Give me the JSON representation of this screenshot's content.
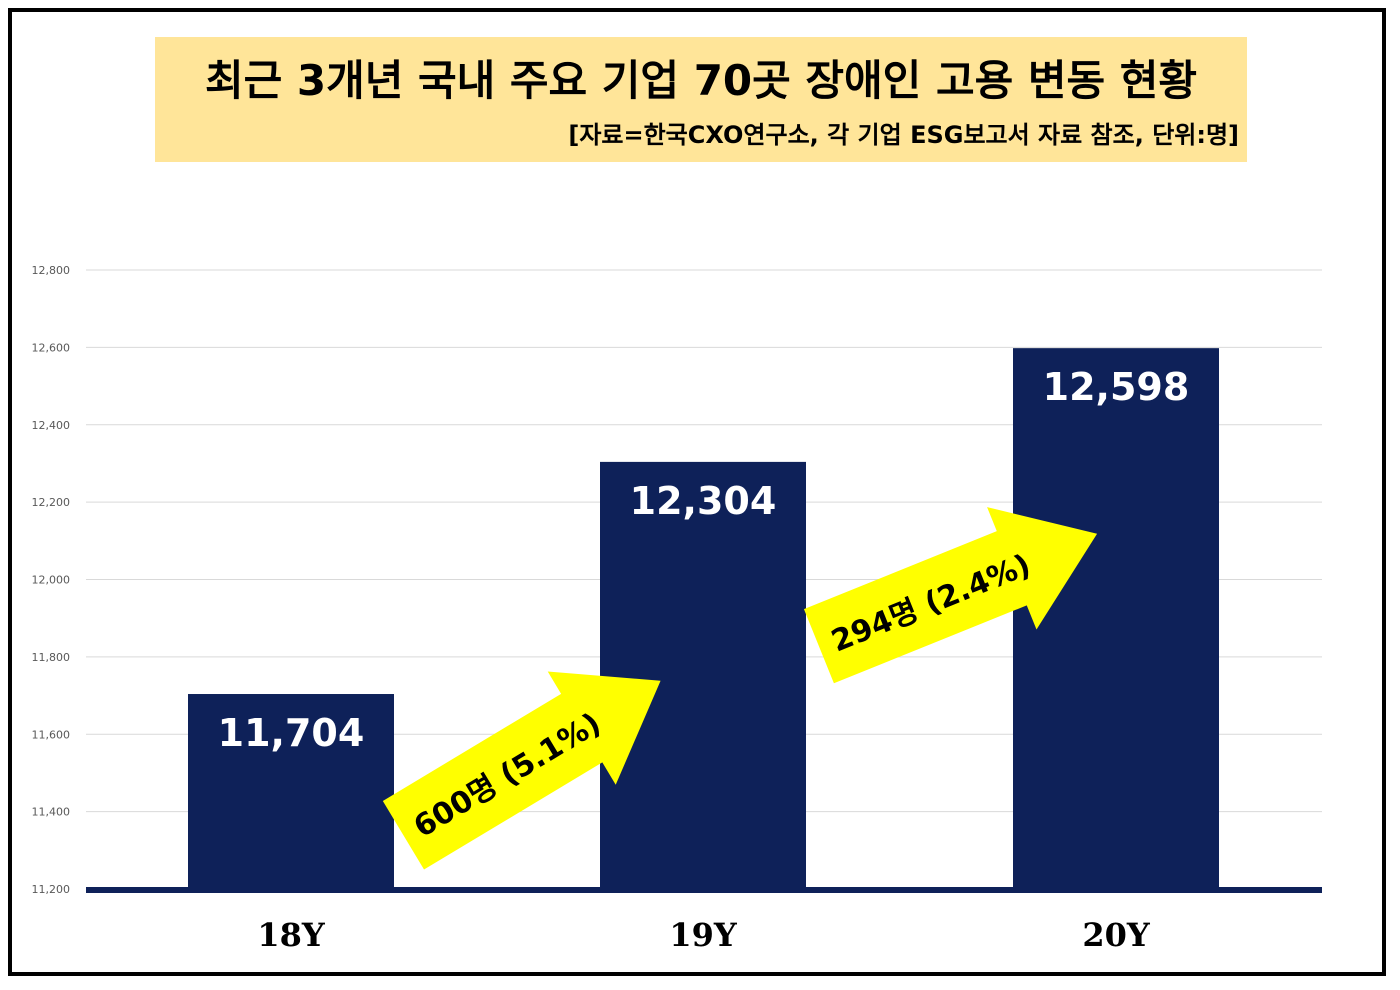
{
  "header": {
    "title": "최근 3개년 국내 주요 기업 70곳 장애인 고용 변동 현황",
    "source": "[자료=한국CXO연구소, 각 기업 ESG보고서 자료 참조, 단위:명]"
  },
  "chart_data": {
    "type": "bar",
    "categories": [
      "18Y",
      "19Y",
      "20Y"
    ],
    "values": [
      11704,
      12304,
      12598
    ],
    "data_labels": [
      "11,704",
      "12,304",
      "12,598"
    ],
    "ylim": [
      11200,
      12800
    ],
    "y_ticks": [
      11200,
      11400,
      11600,
      11800,
      12000,
      12200,
      12400,
      12600,
      12800
    ],
    "y_tick_labels": [
      "11,200",
      "11,400",
      "11,600",
      "11,800",
      "12,000",
      "12,200",
      "12,400",
      "12,600",
      "12,800"
    ],
    "grid": true,
    "bar_color": "#0e2159",
    "annotations": [
      {
        "text": "600명 (5.1%)",
        "from": "18Y",
        "to": "19Y",
        "color": "#ffff00"
      },
      {
        "text": "294명 (2.4%)",
        "from": "19Y",
        "to": "20Y",
        "color": "#ffff00"
      }
    ]
  }
}
